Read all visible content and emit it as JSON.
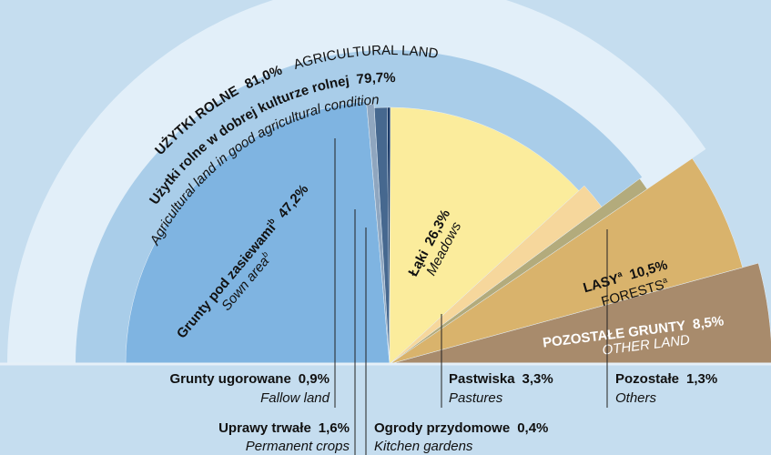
{
  "chart_data": {
    "type": "pie",
    "half": true,
    "categories": [
      "Grunty pod zasiewami",
      "Grunty ugorowane",
      "Uprawy trwałe",
      "Ogrody przydomowe",
      "Łąki",
      "Pastwiska",
      "Pozostałe",
      "LASY",
      "POZOSTAŁE GRUNTY"
    ],
    "categories_en": [
      "Sown area",
      "Fallow land",
      "Permanent crops",
      "Kitchen gardens",
      "Meadows",
      "Pastures",
      "Others",
      "FORESTS",
      "OTHER LAND"
    ],
    "footnote_marks": [
      "b",
      null,
      null,
      null,
      null,
      null,
      null,
      "a",
      null
    ],
    "footnote_marks_en": [
      "b",
      null,
      null,
      null,
      null,
      null,
      null,
      "a",
      null
    ],
    "values": [
      47.2,
      0.9,
      1.6,
      0.4,
      26.3,
      3.3,
      1.3,
      10.5,
      8.5
    ],
    "value_labels": [
      "47,2%",
      "0,9%",
      "1,6%",
      "0,4%",
      "26,3%",
      "3,3%",
      "1,3%",
      "10,5%",
      "8,5%"
    ],
    "colors": [
      "#7fb4e1",
      "#8fa6bf",
      "#46688f",
      "#1c3a66",
      "#fbec9c",
      "#f6d79c",
      "#b3ab7c",
      "#d9b36c",
      "#a88b6c"
    ],
    "rings": [
      {
        "label": "UŻYTKI ROLNE",
        "label_en": "AGRICULTURAL LAND",
        "value": 81.0,
        "value_label": "81,0%",
        "color": "#e2eff9"
      },
      {
        "label": "Użytki rolne w dobrej kulturze rolnej",
        "label_en": "Agricultural land in good agricultural condition",
        "value": 79.7,
        "value_label": "79,7%",
        "color": "#a9cde9"
      }
    ]
  }
}
